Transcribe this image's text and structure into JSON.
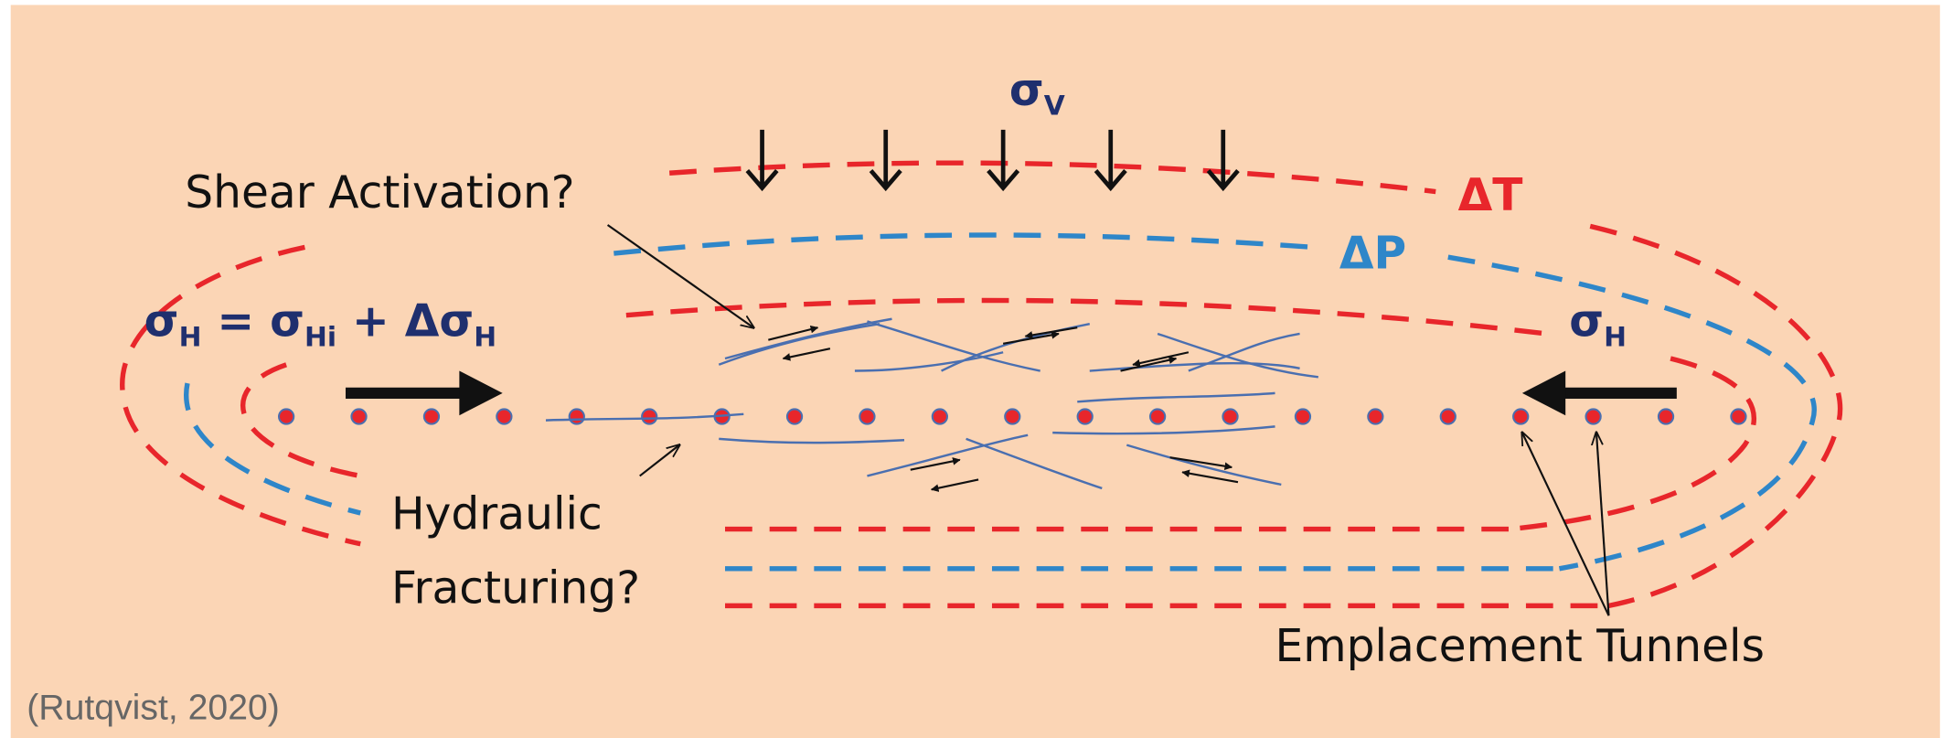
{
  "labels": {
    "sigma_v": {
      "text": "σ",
      "sub": "V"
    },
    "shear_activation": "Shear Activation?",
    "delta_t": "ΔT",
    "delta_p": "ΔP",
    "sigma_h_equation": [
      {
        "text": "σ",
        "sub": "H"
      },
      {
        "text": " = σ",
        "sub": "Hi"
      },
      {
        "text": " +  Δσ",
        "sub": "H"
      }
    ],
    "sigma_h_right": {
      "text": "σ",
      "sub": "H"
    },
    "hydraulic_fracturing": [
      "Hydraulic",
      "Fracturing?"
    ],
    "emplacement_tunnels": "Emplacement Tunnels",
    "citation": "(Rutqvist, 2020)"
  }
}
